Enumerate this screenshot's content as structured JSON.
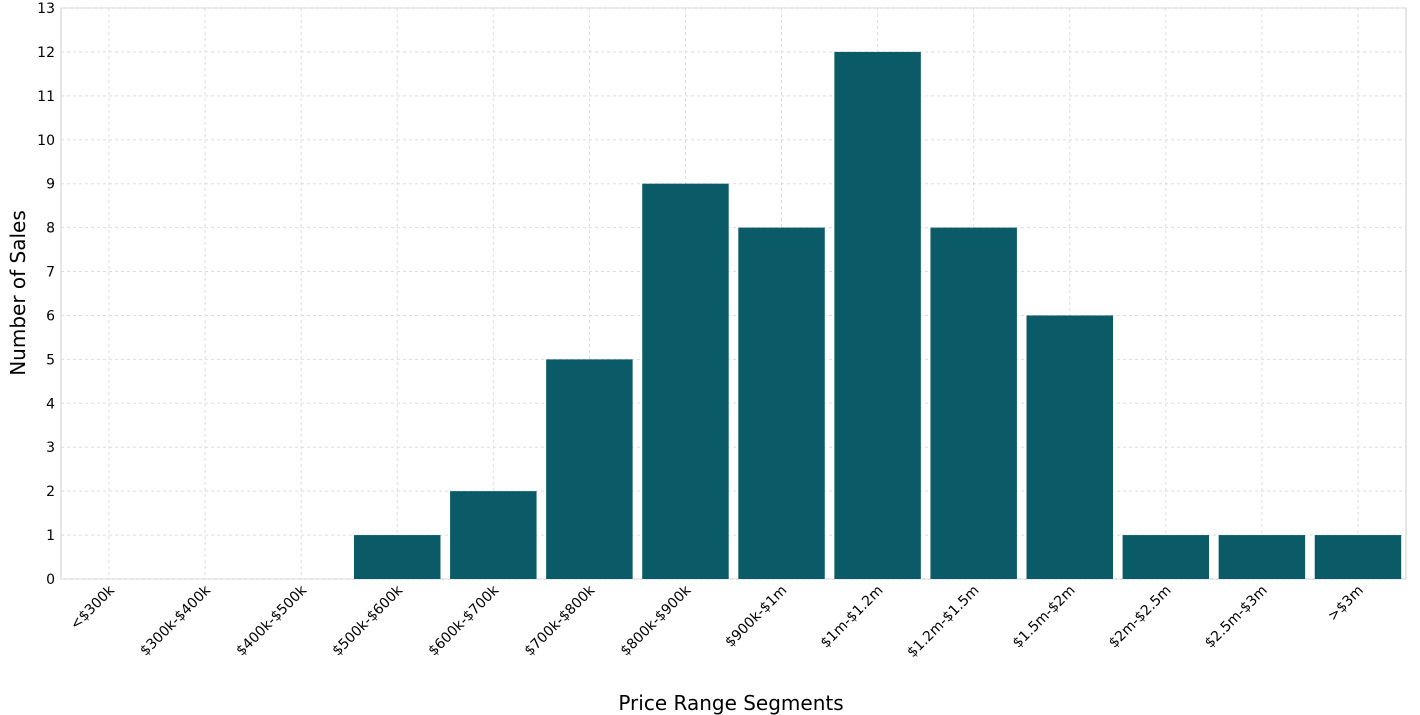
{
  "chart_data": {
    "type": "bar",
    "x_label": "Price Range Segments",
    "y_label": "Number of Sales",
    "categories": [
      "<$300k",
      "$300k-$400k",
      "$400k-$500k",
      "$500k-$600k",
      "$600k-$700k",
      "$700k-$800k",
      "$800k-$900k",
      "$900k-$1m",
      "$1m-$1.2m",
      "$1.2m-$1.5m",
      "$1.5m-$2m",
      "$2m-$2.5m",
      "$2.5m-$3m",
      ">$3m"
    ],
    "values": [
      0,
      0,
      0,
      1,
      2,
      5,
      9,
      8,
      12,
      8,
      6,
      1,
      1,
      1
    ],
    "color": "#0a5a68",
    "ylim": [
      0,
      13
    ],
    "yticks": [
      0,
      1,
      2,
      3,
      4,
      5,
      6,
      7,
      8,
      9,
      10,
      11,
      12,
      13
    ],
    "grid": true
  }
}
